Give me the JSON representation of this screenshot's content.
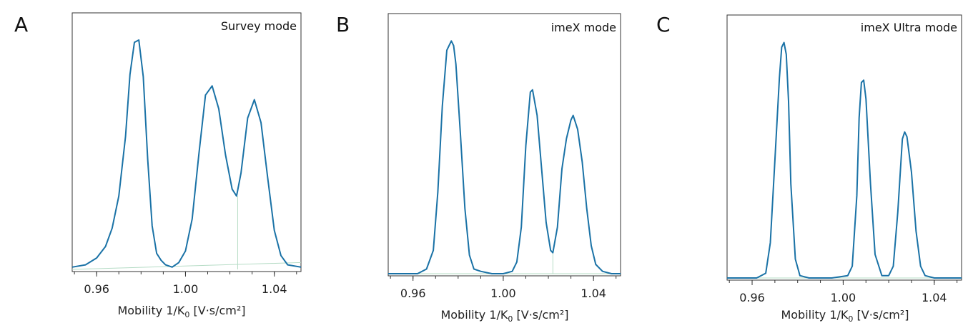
{
  "chart_data": [
    {
      "type": "line",
      "panel": "A",
      "title": "Survey mode",
      "xlabel": "Mobility 1/K",
      "xlabel_sub": "0",
      "xlabel_unit": " [V·s/cm²]",
      "xlim": [
        0.949,
        1.052
      ],
      "ylim": [
        0,
        1.05
      ],
      "xticks": [
        0.96,
        1.0,
        1.04
      ],
      "xtick_labels": [
        "0.96",
        "1.00",
        "1.04"
      ],
      "series": [
        {
          "color": "#1a72a6",
          "x": [
            0.949,
            0.955,
            0.96,
            0.964,
            0.967,
            0.97,
            0.973,
            0.975,
            0.977,
            0.979,
            0.981,
            0.983,
            0.985,
            0.987,
            0.989,
            0.991,
            0.994,
            0.997,
            1.0,
            1.003,
            1.006,
            1.009,
            1.012,
            1.015,
            1.018,
            1.021,
            1.023,
            1.025,
            1.028,
            1.031,
            1.034,
            1.037,
            1.04,
            1.043,
            1.046,
            1.052
          ],
          "y": [
            0.01,
            0.02,
            0.05,
            0.1,
            0.18,
            0.32,
            0.58,
            0.85,
            0.99,
            1.0,
            0.84,
            0.48,
            0.19,
            0.07,
            0.04,
            0.02,
            0.01,
            0.03,
            0.08,
            0.22,
            0.5,
            0.76,
            0.8,
            0.7,
            0.5,
            0.35,
            0.32,
            0.42,
            0.66,
            0.74,
            0.64,
            0.4,
            0.17,
            0.06,
            0.02,
            0.01
          ]
        }
      ],
      "baseline": {
        "x": [
          0.949,
          1.052
        ],
        "y": [
          0.0,
          0.03
        ]
      },
      "valley_drop": {
        "x": 1.0235,
        "y": 0.32
      }
    },
    {
      "type": "line",
      "panel": "B",
      "title": "imeX mode",
      "xlabel": "Mobility 1/K",
      "xlabel_sub": "0",
      "xlabel_unit": " [V·s/cm²]",
      "xlim": [
        0.949,
        1.052
      ],
      "ylim": [
        0,
        1.05
      ],
      "xticks": [
        0.96,
        1.0,
        1.04
      ],
      "xtick_labels": [
        "0.96",
        "1.00",
        "1.04"
      ],
      "series": [
        {
          "color": "#1a72a6",
          "x": [
            0.949,
            0.955,
            0.962,
            0.966,
            0.969,
            0.971,
            0.973,
            0.975,
            0.977,
            0.978,
            0.979,
            0.981,
            0.983,
            0.985,
            0.987,
            0.99,
            0.995,
            1.0,
            1.004,
            1.006,
            1.008,
            1.01,
            1.012,
            1.013,
            1.015,
            1.017,
            1.019,
            1.021,
            1.022,
            1.024,
            1.026,
            1.028,
            1.03,
            1.031,
            1.033,
            1.035,
            1.037,
            1.039,
            1.041,
            1.044,
            1.048,
            1.052
          ],
          "y": [
            0.0,
            0.0,
            0.0,
            0.02,
            0.1,
            0.35,
            0.72,
            0.96,
            1.0,
            0.98,
            0.9,
            0.6,
            0.28,
            0.08,
            0.02,
            0.01,
            0.0,
            0.0,
            0.01,
            0.05,
            0.2,
            0.55,
            0.78,
            0.79,
            0.68,
            0.45,
            0.22,
            0.1,
            0.09,
            0.2,
            0.45,
            0.58,
            0.66,
            0.68,
            0.62,
            0.48,
            0.28,
            0.12,
            0.04,
            0.01,
            0.0,
            0.0
          ]
        }
      ],
      "baseline": {
        "x": [
          0.949,
          1.052
        ],
        "y": [
          0.0,
          0.0
        ]
      },
      "valley_drop": {
        "x": 1.022,
        "y": 0.09
      }
    },
    {
      "type": "line",
      "panel": "C",
      "title": "imeX Ultra mode",
      "xlabel": "Mobility 1/K",
      "xlabel_sub": "0",
      "xlabel_unit": " [V·s/cm²]",
      "xlim": [
        0.949,
        1.052
      ],
      "ylim": [
        0,
        1.05
      ],
      "xticks": [
        0.96,
        1.0,
        1.04
      ],
      "xtick_labels": [
        "0.96",
        "1.00",
        "1.04"
      ],
      "series": [
        {
          "color": "#1a72a6",
          "x": [
            0.949,
            0.955,
            0.962,
            0.966,
            0.968,
            0.97,
            0.972,
            0.973,
            0.974,
            0.975,
            0.976,
            0.977,
            0.979,
            0.981,
            0.985,
            0.995,
            1.002,
            1.004,
            1.006,
            1.007,
            1.008,
            1.009,
            1.01,
            1.012,
            1.014,
            1.017,
            1.02,
            1.022,
            1.024,
            1.026,
            1.027,
            1.028,
            1.03,
            1.032,
            1.034,
            1.036,
            1.04,
            1.046,
            1.052
          ],
          "y": [
            0.0,
            0.0,
            0.0,
            0.02,
            0.15,
            0.5,
            0.85,
            0.98,
            1.0,
            0.95,
            0.75,
            0.4,
            0.08,
            0.01,
            0.0,
            0.0,
            0.01,
            0.05,
            0.35,
            0.68,
            0.83,
            0.84,
            0.76,
            0.4,
            0.1,
            0.01,
            0.01,
            0.05,
            0.28,
            0.59,
            0.62,
            0.6,
            0.45,
            0.2,
            0.05,
            0.01,
            0.0,
            0.0,
            0.0
          ]
        }
      ],
      "baseline": {
        "x": [
          0.949,
          1.052
        ],
        "y": [
          0.0,
          0.0
        ]
      },
      "valley_drop": null
    }
  ]
}
